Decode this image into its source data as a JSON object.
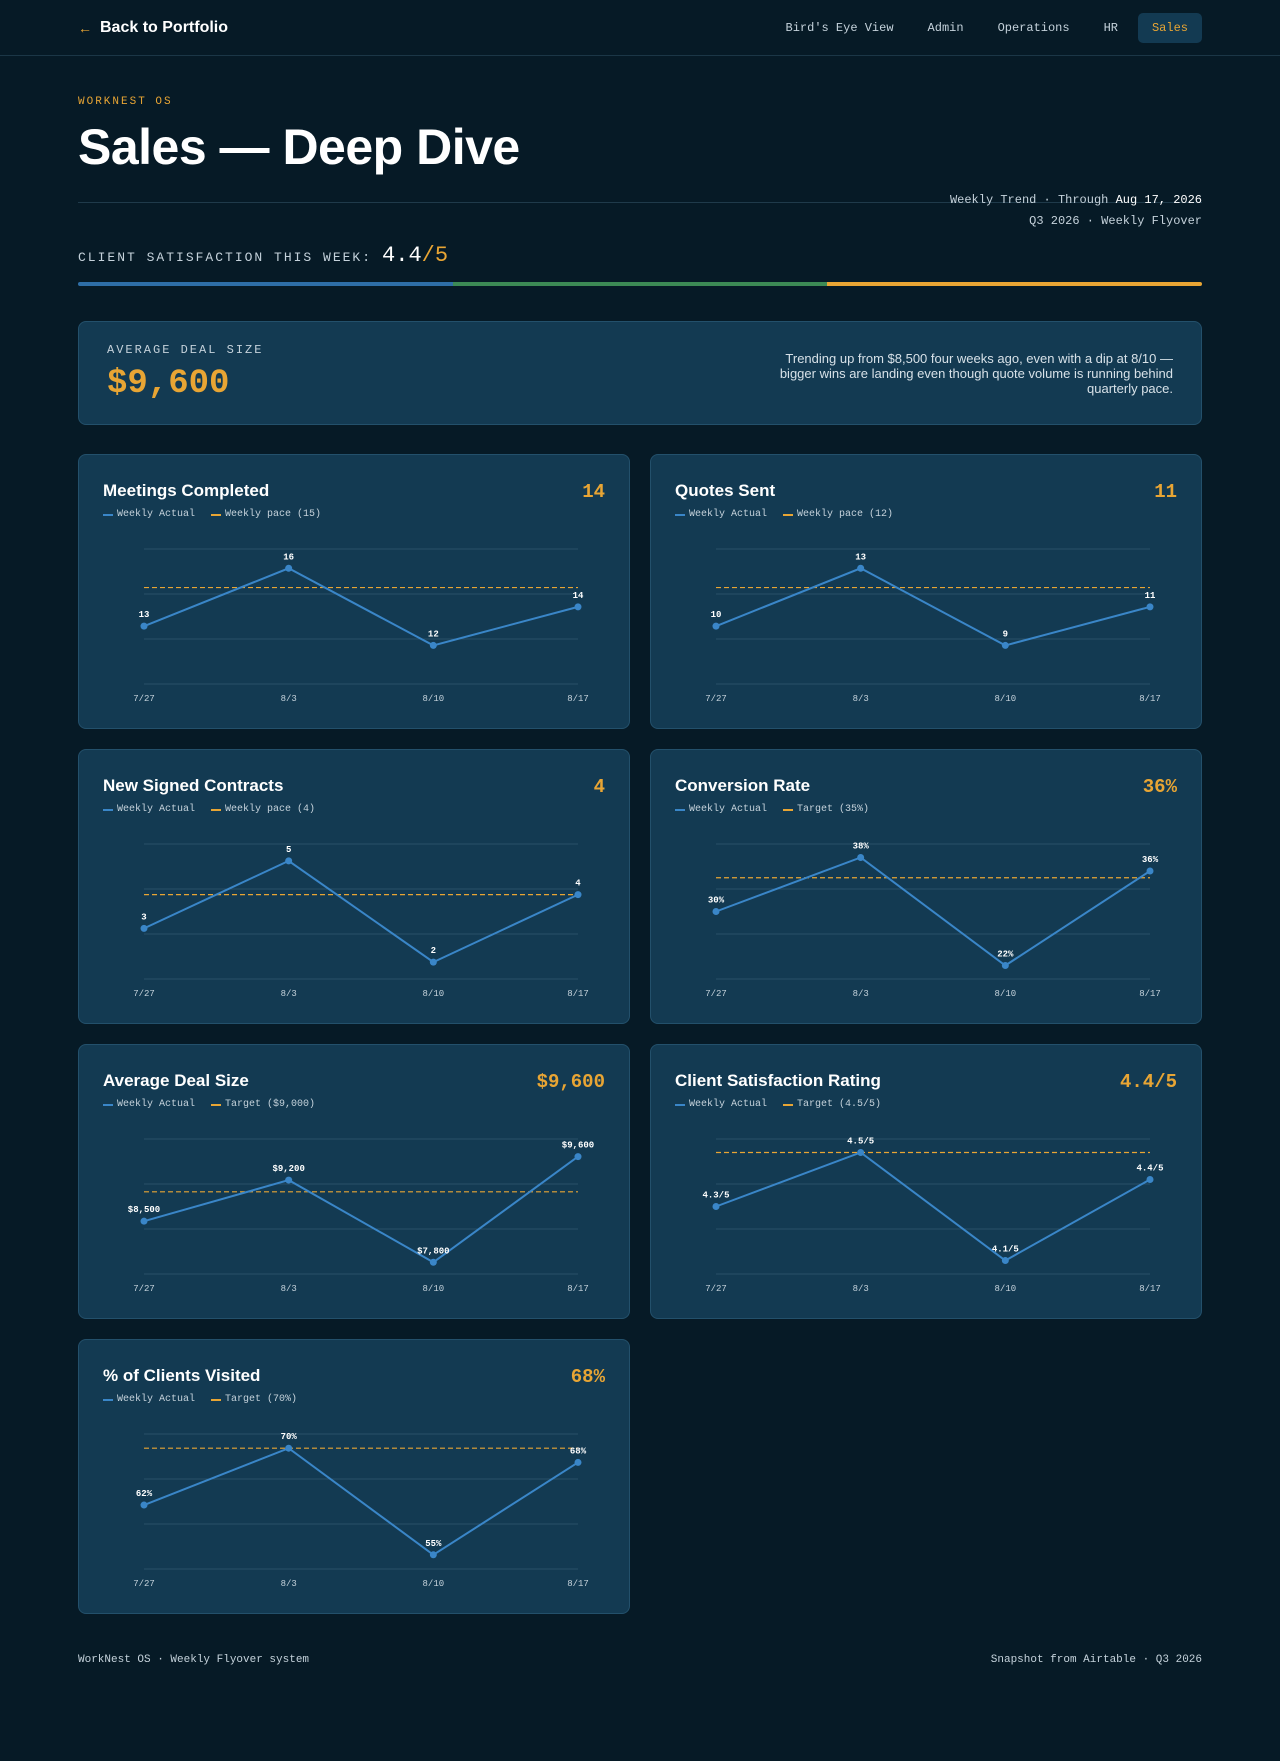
{
  "nav": {
    "back_label": "Back to Portfolio",
    "items": [
      "Bird's Eye View",
      "Admin",
      "Operations",
      "HR",
      "Sales"
    ],
    "active": "Sales"
  },
  "header": {
    "eyebrow": "WORKNEST OS",
    "title": "Sales — Deep Dive",
    "meta_prefix": "Weekly Trend · Through ",
    "meta_date": "Aug 17, 2026",
    "meta_line2": "Q3 2026 · Weekly Flyover"
  },
  "csat": {
    "label": "CLIENT SATISFACTION THIS WEEK:",
    "value": "4.4",
    "max": "/5",
    "bar_colors": [
      "#2e6ea6",
      "#3c8a55",
      "#e8a534"
    ]
  },
  "hero": {
    "label": "AVERAGE DEAL SIZE",
    "value": "$9,600",
    "note": "Trending up from $8,500 four weeks ago, even with a dip at 8/10 — bigger wins are landing even though quote volume is running behind quarterly pace."
  },
  "colors": {
    "actual": "#3a86c8",
    "target": "#e8a534",
    "grid": "#2a5068"
  },
  "chart_data": [
    {
      "type": "line",
      "title": "Meetings Completed",
      "current": "14",
      "x": [
        "7/27",
        "8/3",
        "8/10",
        "8/17"
      ],
      "legend": [
        "Weekly Actual",
        "Weekly pace (15)"
      ],
      "series": [
        {
          "name": "Weekly Actual",
          "values": [
            13,
            16,
            12,
            14
          ]
        }
      ],
      "target": 15,
      "labels": [
        "13",
        "16",
        "12",
        "14"
      ],
      "ylim": [
        10,
        17
      ]
    },
    {
      "type": "line",
      "title": "Quotes Sent",
      "current": "11",
      "x": [
        "7/27",
        "8/3",
        "8/10",
        "8/17"
      ],
      "legend": [
        "Weekly Actual",
        "Weekly pace (12)"
      ],
      "series": [
        {
          "name": "Weekly Actual",
          "values": [
            10,
            13,
            9,
            11
          ]
        }
      ],
      "target": 12,
      "labels": [
        "10",
        "13",
        "9",
        "11"
      ],
      "ylim": [
        7,
        14
      ]
    },
    {
      "type": "line",
      "title": "New Signed Contracts",
      "current": "4",
      "x": [
        "7/27",
        "8/3",
        "8/10",
        "8/17"
      ],
      "legend": [
        "Weekly Actual",
        "Weekly pace (4)"
      ],
      "series": [
        {
          "name": "Weekly Actual",
          "values": [
            3,
            5,
            2,
            4
          ]
        }
      ],
      "target": 4,
      "labels": [
        "3",
        "5",
        "2",
        "4"
      ],
      "ylim": [
        1.5,
        5.5
      ]
    },
    {
      "type": "line",
      "title": "Conversion Rate",
      "current": "36%",
      "x": [
        "7/27",
        "8/3",
        "8/10",
        "8/17"
      ],
      "legend": [
        "Weekly Actual",
        "Target (35%)"
      ],
      "series": [
        {
          "name": "Weekly Actual",
          "values": [
            30,
            38,
            22,
            36
          ]
        }
      ],
      "target": 35,
      "labels": [
        "30%",
        "38%",
        "22%",
        "36%"
      ],
      "ylim": [
        20,
        40
      ]
    },
    {
      "type": "line",
      "title": "Average Deal Size",
      "current": "$9,600",
      "x": [
        "7/27",
        "8/3",
        "8/10",
        "8/17"
      ],
      "legend": [
        "Weekly Actual",
        "Target ($9,000)"
      ],
      "series": [
        {
          "name": "Weekly Actual",
          "values": [
            8500,
            9200,
            7800,
            9600
          ]
        }
      ],
      "target": 9000,
      "labels": [
        "$8,500",
        "$9,200",
        "$7,800",
        "$9,600"
      ],
      "ylim": [
        7600,
        9900
      ]
    },
    {
      "type": "line",
      "title": "Client Satisfaction Rating",
      "current": "4.4/5",
      "x": [
        "7/27",
        "8/3",
        "8/10",
        "8/17"
      ],
      "legend": [
        "Weekly Actual",
        "Target (4.5/5)"
      ],
      "series": [
        {
          "name": "Weekly Actual",
          "values": [
            4.3,
            4.5,
            4.1,
            4.4
          ]
        }
      ],
      "target": 4.5,
      "labels": [
        "4.3/5",
        "4.5/5",
        "4.1/5",
        "4.4/5"
      ],
      "ylim": [
        4.05,
        4.55
      ]
    },
    {
      "type": "line",
      "title": "% of Clients Visited",
      "current": "68%",
      "x": [
        "7/27",
        "8/3",
        "8/10",
        "8/17"
      ],
      "legend": [
        "Weekly Actual",
        "Target (70%)"
      ],
      "series": [
        {
          "name": "Weekly Actual",
          "values": [
            62,
            70,
            55,
            68
          ]
        }
      ],
      "target": 70,
      "labels": [
        "62%",
        "70%",
        "55%",
        "68%"
      ],
      "ylim": [
        53,
        72
      ]
    }
  ],
  "footer": {
    "left": "WorkNest OS · Weekly Flyover system",
    "right": "Snapshot from Airtable · Q3 2026"
  }
}
